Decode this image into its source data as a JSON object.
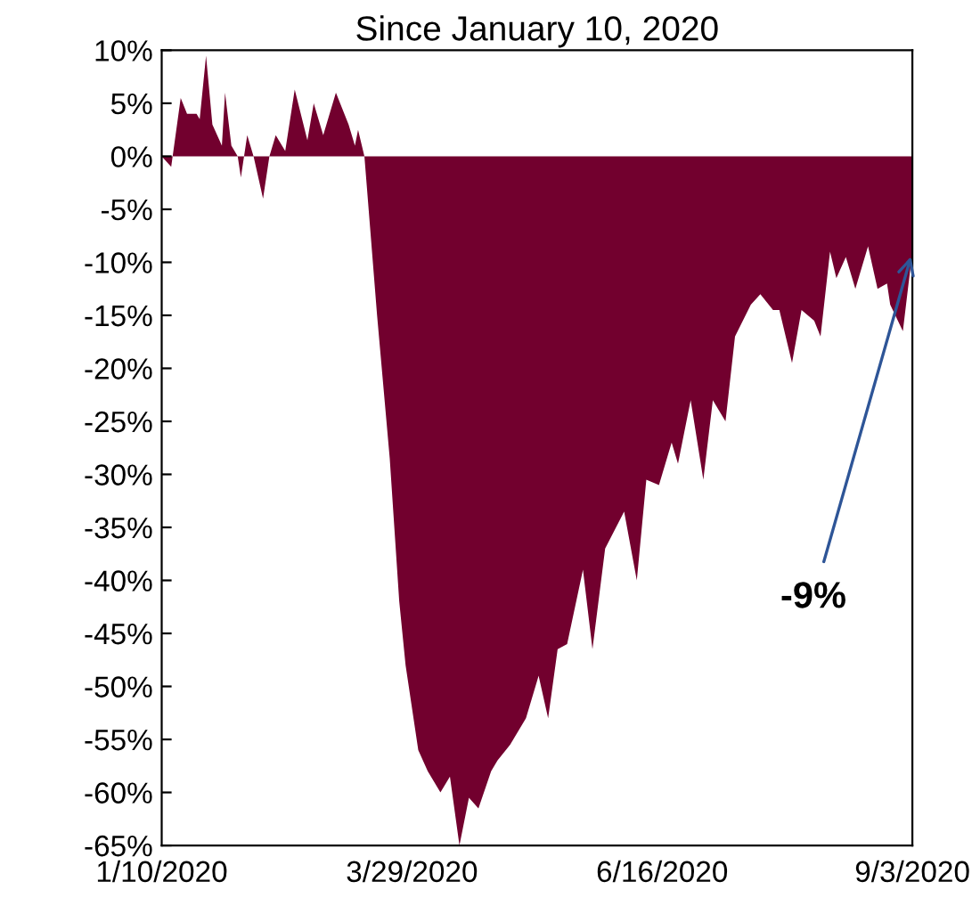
{
  "chart_data": {
    "type": "area",
    "title": "Since January 10, 2020",
    "x": [
      "2020-01-10",
      "2020-01-13",
      "2020-01-16",
      "2020-01-18",
      "2020-01-21",
      "2020-01-22",
      "2020-01-24",
      "2020-01-26",
      "2020-01-29",
      "2020-01-30",
      "2020-02-01",
      "2020-02-03",
      "2020-02-04",
      "2020-02-06",
      "2020-02-08",
      "2020-02-11",
      "2020-02-13",
      "2020-02-15",
      "2020-02-18",
      "2020-02-21",
      "2020-02-25",
      "2020-02-27",
      "2020-03-01",
      "2020-03-05",
      "2020-03-09",
      "2020-03-11",
      "2020-03-12",
      "2020-03-14",
      "2020-03-18",
      "2020-03-22",
      "2020-03-25",
      "2020-03-27",
      "2020-03-31",
      "2020-04-03",
      "2020-04-07",
      "2020-04-10",
      "2020-04-13",
      "2020-04-16",
      "2020-04-19",
      "2020-04-23",
      "2020-04-25",
      "2020-04-29",
      "2020-05-04",
      "2020-05-08",
      "2020-05-11",
      "2020-05-14",
      "2020-05-17",
      "2020-05-22",
      "2020-05-25",
      "2020-05-29",
      "2020-06-04",
      "2020-06-08",
      "2020-06-11",
      "2020-06-15",
      "2020-06-19",
      "2020-06-21",
      "2020-06-25",
      "2020-06-29",
      "2020-07-02",
      "2020-07-06",
      "2020-07-09",
      "2020-07-14",
      "2020-07-17",
      "2020-07-21",
      "2020-07-23",
      "2020-07-27",
      "2020-07-30",
      "2020-08-03",
      "2020-08-05",
      "2020-08-08",
      "2020-08-10",
      "2020-08-13",
      "2020-08-16",
      "2020-08-20",
      "2020-08-23",
      "2020-08-26",
      "2020-08-27",
      "2020-08-31",
      "2020-09-03"
    ],
    "series": [
      {
        "color": "#72002e",
        "values": [
          0,
          -1,
          5.5,
          4,
          4,
          3.5,
          9.5,
          3,
          1,
          6,
          1,
          0,
          -2,
          2,
          0,
          -4,
          0,
          2,
          0.5,
          6.3,
          1.5,
          5,
          2,
          6,
          3,
          1,
          2.5,
          0,
          -15,
          -28.5,
          -42,
          -48,
          -56,
          -58,
          -60,
          -58.5,
          -65,
          -60.5,
          -61.5,
          -58,
          -57,
          -55.5,
          -53,
          -49,
          -53,
          -46.5,
          -46,
          -39,
          -46.5,
          -37,
          -33.5,
          -40,
          -30.5,
          -31,
          -27,
          -29,
          -23,
          -30.5,
          -23,
          -25,
          -17,
          -14,
          -13,
          -14.5,
          -14.5,
          -19.5,
          -14.5,
          -15.5,
          -17,
          -9,
          -11.5,
          -9.5,
          -12.5,
          -8.5,
          -12.5,
          -12,
          -14,
          -16.5,
          -9
        ]
      }
    ],
    "xlim": [
      "2020-01-10",
      "2020-09-03"
    ],
    "xticks": [
      {
        "value": "2020-01-10",
        "label": "1/10/2020"
      },
      {
        "value": "2020-03-29",
        "label": "3/29/2020"
      },
      {
        "value": "2020-06-16",
        "label": "6/16/2020"
      },
      {
        "value": "2020-09-03",
        "label": "9/3/2020"
      }
    ],
    "ylim": [
      -65,
      10
    ],
    "yticks": [
      {
        "value": 10,
        "label": "10%"
      },
      {
        "value": 5,
        "label": "5%"
      },
      {
        "value": 0,
        "label": "0%"
      },
      {
        "value": -5,
        "label": "-5%"
      },
      {
        "value": -10,
        "label": "-10%"
      },
      {
        "value": -15,
        "label": "-15%"
      },
      {
        "value": -20,
        "label": "-20%"
      },
      {
        "value": -25,
        "label": "-25%"
      },
      {
        "value": -30,
        "label": "-30%"
      },
      {
        "value": -35,
        "label": "-35%"
      },
      {
        "value": -40,
        "label": "-40%"
      },
      {
        "value": -45,
        "label": "-45%"
      },
      {
        "value": -50,
        "label": "-50%"
      },
      {
        "value": -55,
        "label": "-55%"
      },
      {
        "value": -60,
        "label": "-60%"
      },
      {
        "value": -65,
        "label": "-65%"
      }
    ],
    "annotations": [
      {
        "text": "-9%",
        "x": "2020-09-03",
        "y": -9
      }
    ],
    "grid": false
  }
}
